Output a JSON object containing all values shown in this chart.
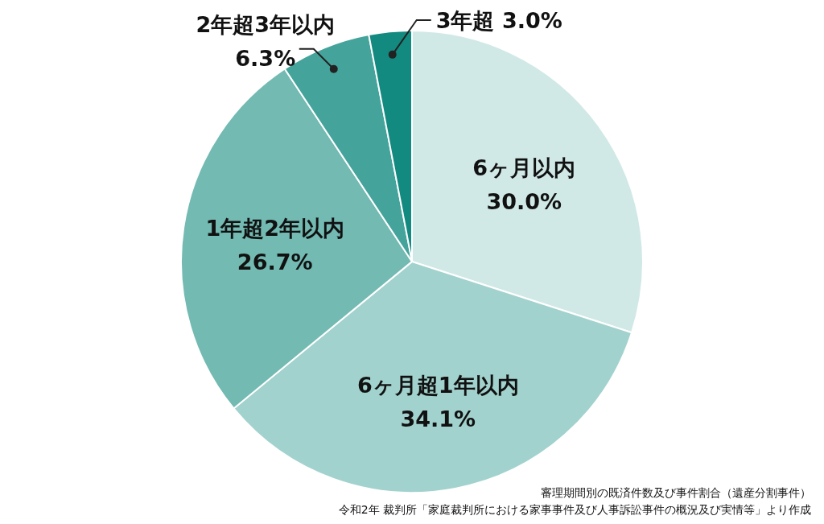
{
  "chart_data": {
    "type": "pie",
    "categories": [
      "6ヶ月以内",
      "6ヶ月超1年以内",
      "1年超2年以内",
      "2年超3年以内",
      "3年超"
    ],
    "values": [
      30.0,
      34.1,
      26.7,
      6.3,
      3.0
    ],
    "value_labels": [
      "30.0%",
      "34.1%",
      "26.7%",
      "6.3%",
      "3.0%"
    ],
    "colors": [
      "#d1e9e6",
      "#a2d2cd",
      "#72bab2",
      "#44a49b",
      "#138a80"
    ],
    "annotations": [
      "審理期間別の既済件数及び事件割合（遺産分割事件）",
      "令和2年 裁判所「家庭裁判所における家事事件及び人事訴訟事件の概況及び実情等」より作成"
    ]
  }
}
